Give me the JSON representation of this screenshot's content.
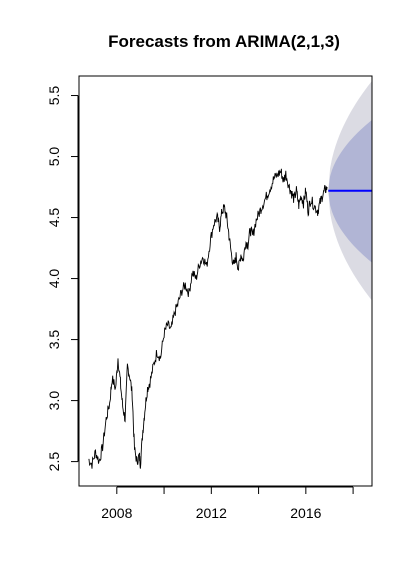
{
  "chart_data": {
    "type": "line",
    "title": "Forecasts from ARIMA(2,1,3)",
    "xlabel": "",
    "ylabel": "",
    "xlim": [
      2006.4,
      2018.8
    ],
    "ylim": [
      2.3,
      5.66
    ],
    "x_ticks": [
      2006,
      2008,
      2010,
      2012,
      2014,
      2016,
      2018
    ],
    "x_tick_labels": [
      "2008",
      "2012",
      "2016"
    ],
    "x_tick_label_values": [
      2008,
      2012,
      2016
    ],
    "y_ticks": [
      2.5,
      3.0,
      3.5,
      4.0,
      4.5,
      5.0,
      5.5
    ],
    "y_tick_labels": [
      "2.5",
      "3.0",
      "3.5",
      "4.0",
      "4.5",
      "5.0",
      "5.5"
    ],
    "grid": false,
    "colors": {
      "history": "#000000",
      "forecast": "#0000ff",
      "band80": "#b1b5d5",
      "band95": "#dbdbe3"
    },
    "series": [
      {
        "x": [
          2006.8,
          2006.95,
          2007.1,
          2007.25,
          2007.4,
          2007.55,
          2007.7,
          2007.8,
          2007.95,
          2008.05,
          2008.15,
          2008.25,
          2008.35,
          2008.45,
          2008.55,
          2008.65,
          2008.75,
          2008.85,
          2008.95,
          2009.0,
          2009.1,
          2009.2,
          2009.3,
          2009.4,
          2009.55,
          2009.7,
          2009.85,
          2010.0,
          2010.15,
          2010.3,
          2010.45,
          2010.6,
          2010.75,
          2010.9,
          2011.05,
          2011.2,
          2011.35,
          2011.5,
          2011.65,
          2011.8,
          2011.95,
          2012.1,
          2012.25,
          2012.35,
          2012.45,
          2012.55,
          2012.65,
          2012.75,
          2012.85,
          2012.95,
          2013.05,
          2013.15,
          2013.25,
          2013.35,
          2013.45,
          2013.55,
          2013.65,
          2013.75,
          2013.9,
          2014.05,
          2014.2,
          2014.35,
          2014.5,
          2014.65,
          2014.8,
          2014.95,
          2015.05,
          2015.15,
          2015.3,
          2015.4,
          2015.5,
          2015.6,
          2015.7,
          2015.8,
          2015.9,
          2016.0,
          2016.1,
          2016.2,
          2016.35,
          2016.5,
          2016.6,
          2016.7,
          2016.8,
          2016.9
        ],
        "y": [
          2.52,
          2.48,
          2.58,
          2.5,
          2.62,
          2.85,
          2.98,
          3.18,
          3.1,
          3.35,
          3.15,
          2.95,
          2.85,
          3.28,
          3.2,
          3.05,
          2.6,
          2.5,
          2.55,
          2.48,
          2.75,
          2.95,
          3.1,
          3.15,
          3.28,
          3.4,
          3.35,
          3.55,
          3.62,
          3.58,
          3.72,
          3.8,
          3.9,
          3.95,
          3.88,
          4.05,
          4.0,
          4.12,
          4.18,
          4.1,
          4.3,
          4.45,
          4.5,
          4.42,
          4.55,
          4.58,
          4.5,
          4.35,
          4.2,
          4.1,
          4.18,
          4.08,
          4.2,
          4.15,
          4.3,
          4.28,
          4.4,
          4.35,
          4.48,
          4.55,
          4.62,
          4.68,
          4.75,
          4.82,
          4.85,
          4.88,
          4.8,
          4.86,
          4.75,
          4.7,
          4.65,
          4.72,
          4.6,
          4.68,
          4.62,
          4.72,
          4.55,
          4.65,
          4.6,
          4.55,
          4.62,
          4.68,
          4.72,
          4.75
        ]
      }
    ],
    "forecast": {
      "x": [
        2016.95,
        2018.8
      ],
      "mean": 4.72,
      "lo80_end": 4.13,
      "hi80_end": 5.3,
      "lo95_end": 3.82,
      "hi95_end": 5.62
    }
  }
}
